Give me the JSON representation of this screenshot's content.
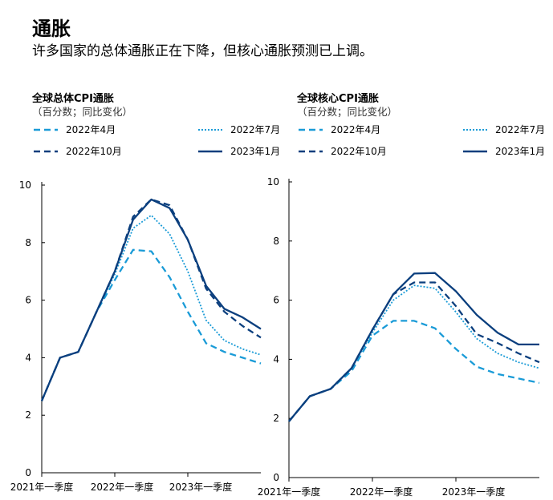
{
  "title": "通胀",
  "subtitle": "许多国家的总体通胀正在下降，但核心通胀预测已上调。",
  "chart_data": [
    {
      "type": "line",
      "title": "全球总体CPI通胀",
      "subtitle": "（百分数；同比变化）",
      "ylim": [
        0,
        10
      ],
      "yticks": [
        0,
        2,
        4,
        6,
        8,
        10
      ],
      "x_range": [
        0,
        12
      ],
      "xticks": [
        {
          "x": 0,
          "label": "2021年一季度"
        },
        {
          "x": 4,
          "label": "2022年一季度"
        },
        {
          "x": 8,
          "label": "2023年一季度"
        }
      ],
      "series": [
        {
          "name": "2022年4月",
          "style": "dashed",
          "color": "#1a9bd7",
          "x": [
            0,
            1,
            2,
            3,
            4,
            5,
            6,
            7,
            8,
            9,
            10,
            11,
            12
          ],
          "values": [
            2.5,
            4.0,
            4.2,
            5.6,
            6.7,
            7.75,
            7.7,
            6.8,
            5.6,
            4.5,
            4.2,
            4.0,
            3.8
          ]
        },
        {
          "name": "2022年7月",
          "style": "dotted",
          "color": "#1a9bd7",
          "x": [
            0,
            1,
            2,
            3,
            4,
            5,
            6,
            7,
            8,
            9,
            10,
            11,
            12
          ],
          "values": [
            2.5,
            4.0,
            4.2,
            5.6,
            6.9,
            8.5,
            8.95,
            8.3,
            7.0,
            5.3,
            4.6,
            4.3,
            4.1
          ]
        },
        {
          "name": "2022年10月",
          "style": "dashed",
          "color": "#0b3f7e",
          "x": [
            0,
            1,
            2,
            3,
            4,
            5,
            6,
            7,
            8,
            9,
            10,
            11,
            12
          ],
          "values": [
            2.5,
            4.0,
            4.2,
            5.6,
            7.0,
            8.9,
            9.5,
            9.3,
            8.1,
            6.4,
            5.6,
            5.1,
            4.7
          ]
        },
        {
          "name": "2023年1月",
          "style": "solid",
          "color": "#0b3f7e",
          "x": [
            0,
            1,
            2,
            3,
            4,
            5,
            6,
            7,
            8,
            9,
            10,
            11,
            12
          ],
          "values": [
            2.5,
            4.0,
            4.2,
            5.6,
            7.0,
            8.8,
            9.5,
            9.2,
            8.1,
            6.5,
            5.7,
            5.4,
            5.0
          ]
        }
      ]
    },
    {
      "type": "line",
      "title": "全球核心CPI通胀",
      "subtitle": "（百分数；同比变化）",
      "ylim": [
        0,
        10
      ],
      "yticks": [
        0,
        2,
        4,
        6,
        8,
        10
      ],
      "x_range": [
        0,
        12
      ],
      "xticks": [
        {
          "x": 0,
          "label": "2021年一季度"
        },
        {
          "x": 4,
          "label": "2022年一季度"
        },
        {
          "x": 8,
          "label": "2023年一季度"
        }
      ],
      "series": [
        {
          "name": "2022年4月",
          "style": "dashed",
          "color": "#1a9bd7",
          "x": [
            0,
            1,
            2,
            3,
            4,
            5,
            6,
            7,
            8,
            9,
            10,
            11,
            12
          ],
          "values": [
            1.9,
            2.75,
            3.0,
            3.6,
            4.8,
            5.3,
            5.3,
            5.05,
            4.35,
            3.75,
            3.5,
            3.35,
            3.2
          ]
        },
        {
          "name": "2022年7月",
          "style": "dotted",
          "color": "#1a9bd7",
          "x": [
            0,
            1,
            2,
            3,
            4,
            5,
            6,
            7,
            8,
            9,
            10,
            11,
            12
          ],
          "values": [
            1.9,
            2.75,
            3.0,
            3.7,
            4.9,
            6.0,
            6.5,
            6.4,
            5.6,
            4.7,
            4.2,
            3.9,
            3.7
          ]
        },
        {
          "name": "2022年10月",
          "style": "dashed",
          "color": "#0b3f7e",
          "x": [
            0,
            1,
            2,
            3,
            4,
            5,
            6,
            7,
            8,
            9,
            10,
            11,
            12
          ],
          "values": [
            1.9,
            2.75,
            3.0,
            3.7,
            5.0,
            6.2,
            6.6,
            6.6,
            5.8,
            4.85,
            4.55,
            4.2,
            3.9
          ]
        },
        {
          "name": "2023年1月",
          "style": "solid",
          "color": "#0b3f7e",
          "x": [
            0,
            1,
            2,
            3,
            4,
            5,
            6,
            7,
            8,
            9,
            10,
            11,
            12
          ],
          "values": [
            1.9,
            2.75,
            3.0,
            3.7,
            5.0,
            6.2,
            6.9,
            6.92,
            6.3,
            5.5,
            4.9,
            4.5,
            4.5
          ]
        }
      ]
    }
  ]
}
